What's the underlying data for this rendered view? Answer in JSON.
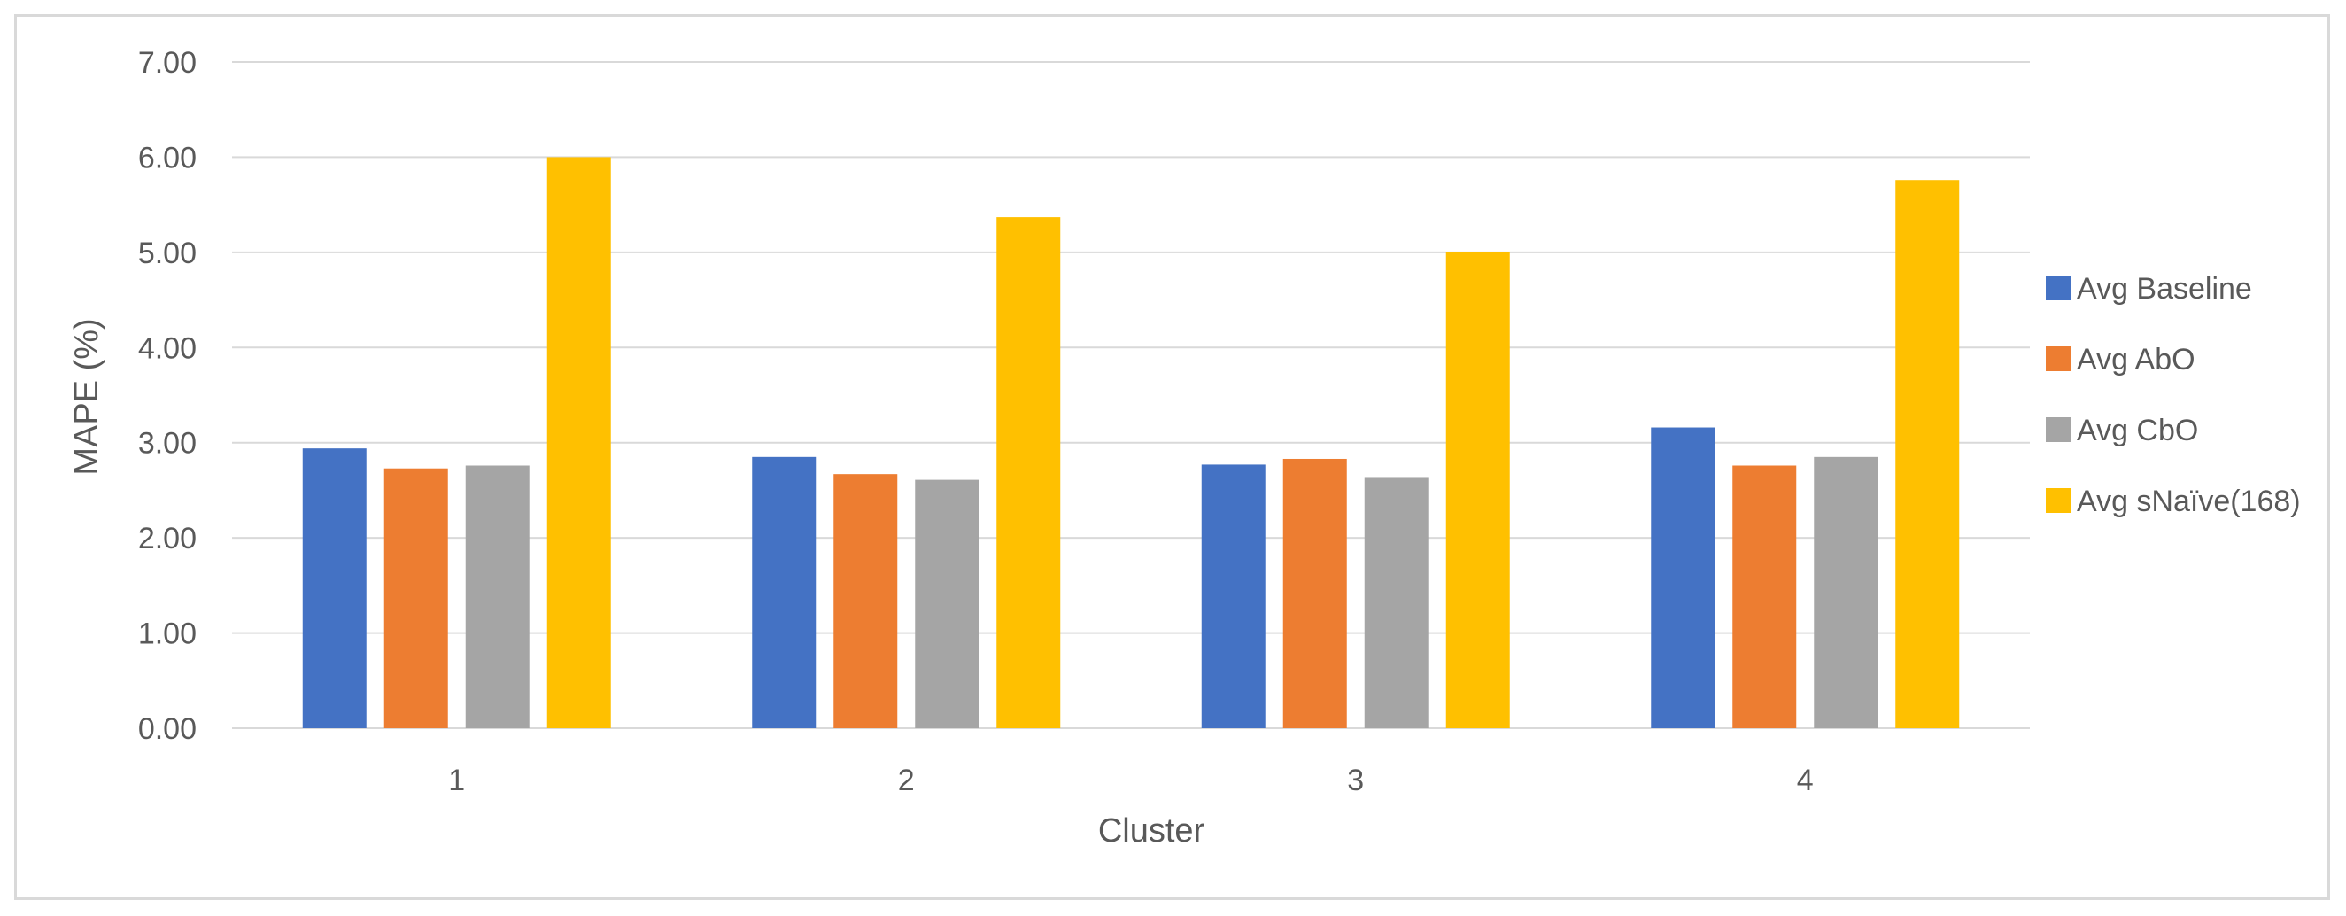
{
  "chart_data": {
    "type": "bar",
    "title": "",
    "xlabel": "Cluster",
    "ylabel": "MAPE (%)",
    "categories": [
      "1",
      "2",
      "3",
      "4"
    ],
    "ylim": [
      0,
      7
    ],
    "yticks": [
      "0.00",
      "1.00",
      "2.00",
      "3.00",
      "4.00",
      "5.00",
      "6.00",
      "7.00"
    ],
    "grid": true,
    "legend_position": "right",
    "series": [
      {
        "name": "Avg Baseline",
        "color": "#4472c4",
        "values": [
          2.94,
          2.85,
          2.77,
          3.16
        ]
      },
      {
        "name": "Avg AbO",
        "color": "#ed7d31",
        "values": [
          2.73,
          2.67,
          2.83,
          2.76
        ]
      },
      {
        "name": "Avg CbO",
        "color": "#a5a5a5",
        "values": [
          2.76,
          2.61,
          2.63,
          2.85
        ]
      },
      {
        "name": "Avg sNaïve(168)",
        "color": "#ffc000",
        "values": [
          6.0,
          5.37,
          5.0,
          5.76
        ]
      }
    ]
  }
}
